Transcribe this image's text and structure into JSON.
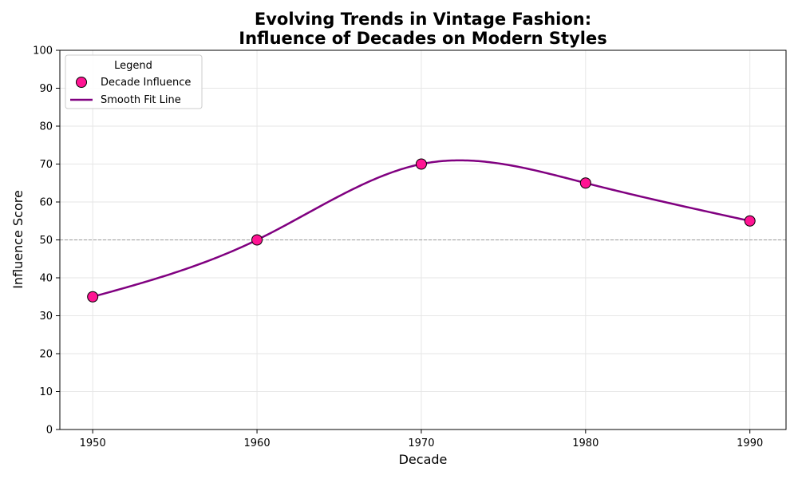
{
  "chart_data": {
    "type": "scatter",
    "title_line1": "Evolving Trends in Vintage Fashion:",
    "title_line2": "Influence of Decades on Modern Styles",
    "xlabel": "Decade",
    "ylabel": "Influence Score",
    "x": [
      1950,
      1960,
      1970,
      1980,
      1990
    ],
    "y": [
      35,
      50,
      70,
      65,
      55
    ],
    "xlim": [
      1948,
      1992.2
    ],
    "ylim": [
      0,
      100
    ],
    "xticks": [
      1950,
      1960,
      1970,
      1980,
      1990
    ],
    "yticks": [
      0,
      10,
      20,
      30,
      40,
      50,
      60,
      70,
      80,
      90,
      100
    ],
    "reference_line_y": 50,
    "grid": true,
    "legend": {
      "title": "Legend",
      "placement": "top-left",
      "entries": [
        "Decade Influence",
        "Smooth Fit Line"
      ]
    },
    "colors": {
      "point_fill": "#ff1493",
      "point_edge": "#000000",
      "line": "#800080",
      "reference_line": "#999999",
      "grid": "#e6e6e6"
    }
  }
}
